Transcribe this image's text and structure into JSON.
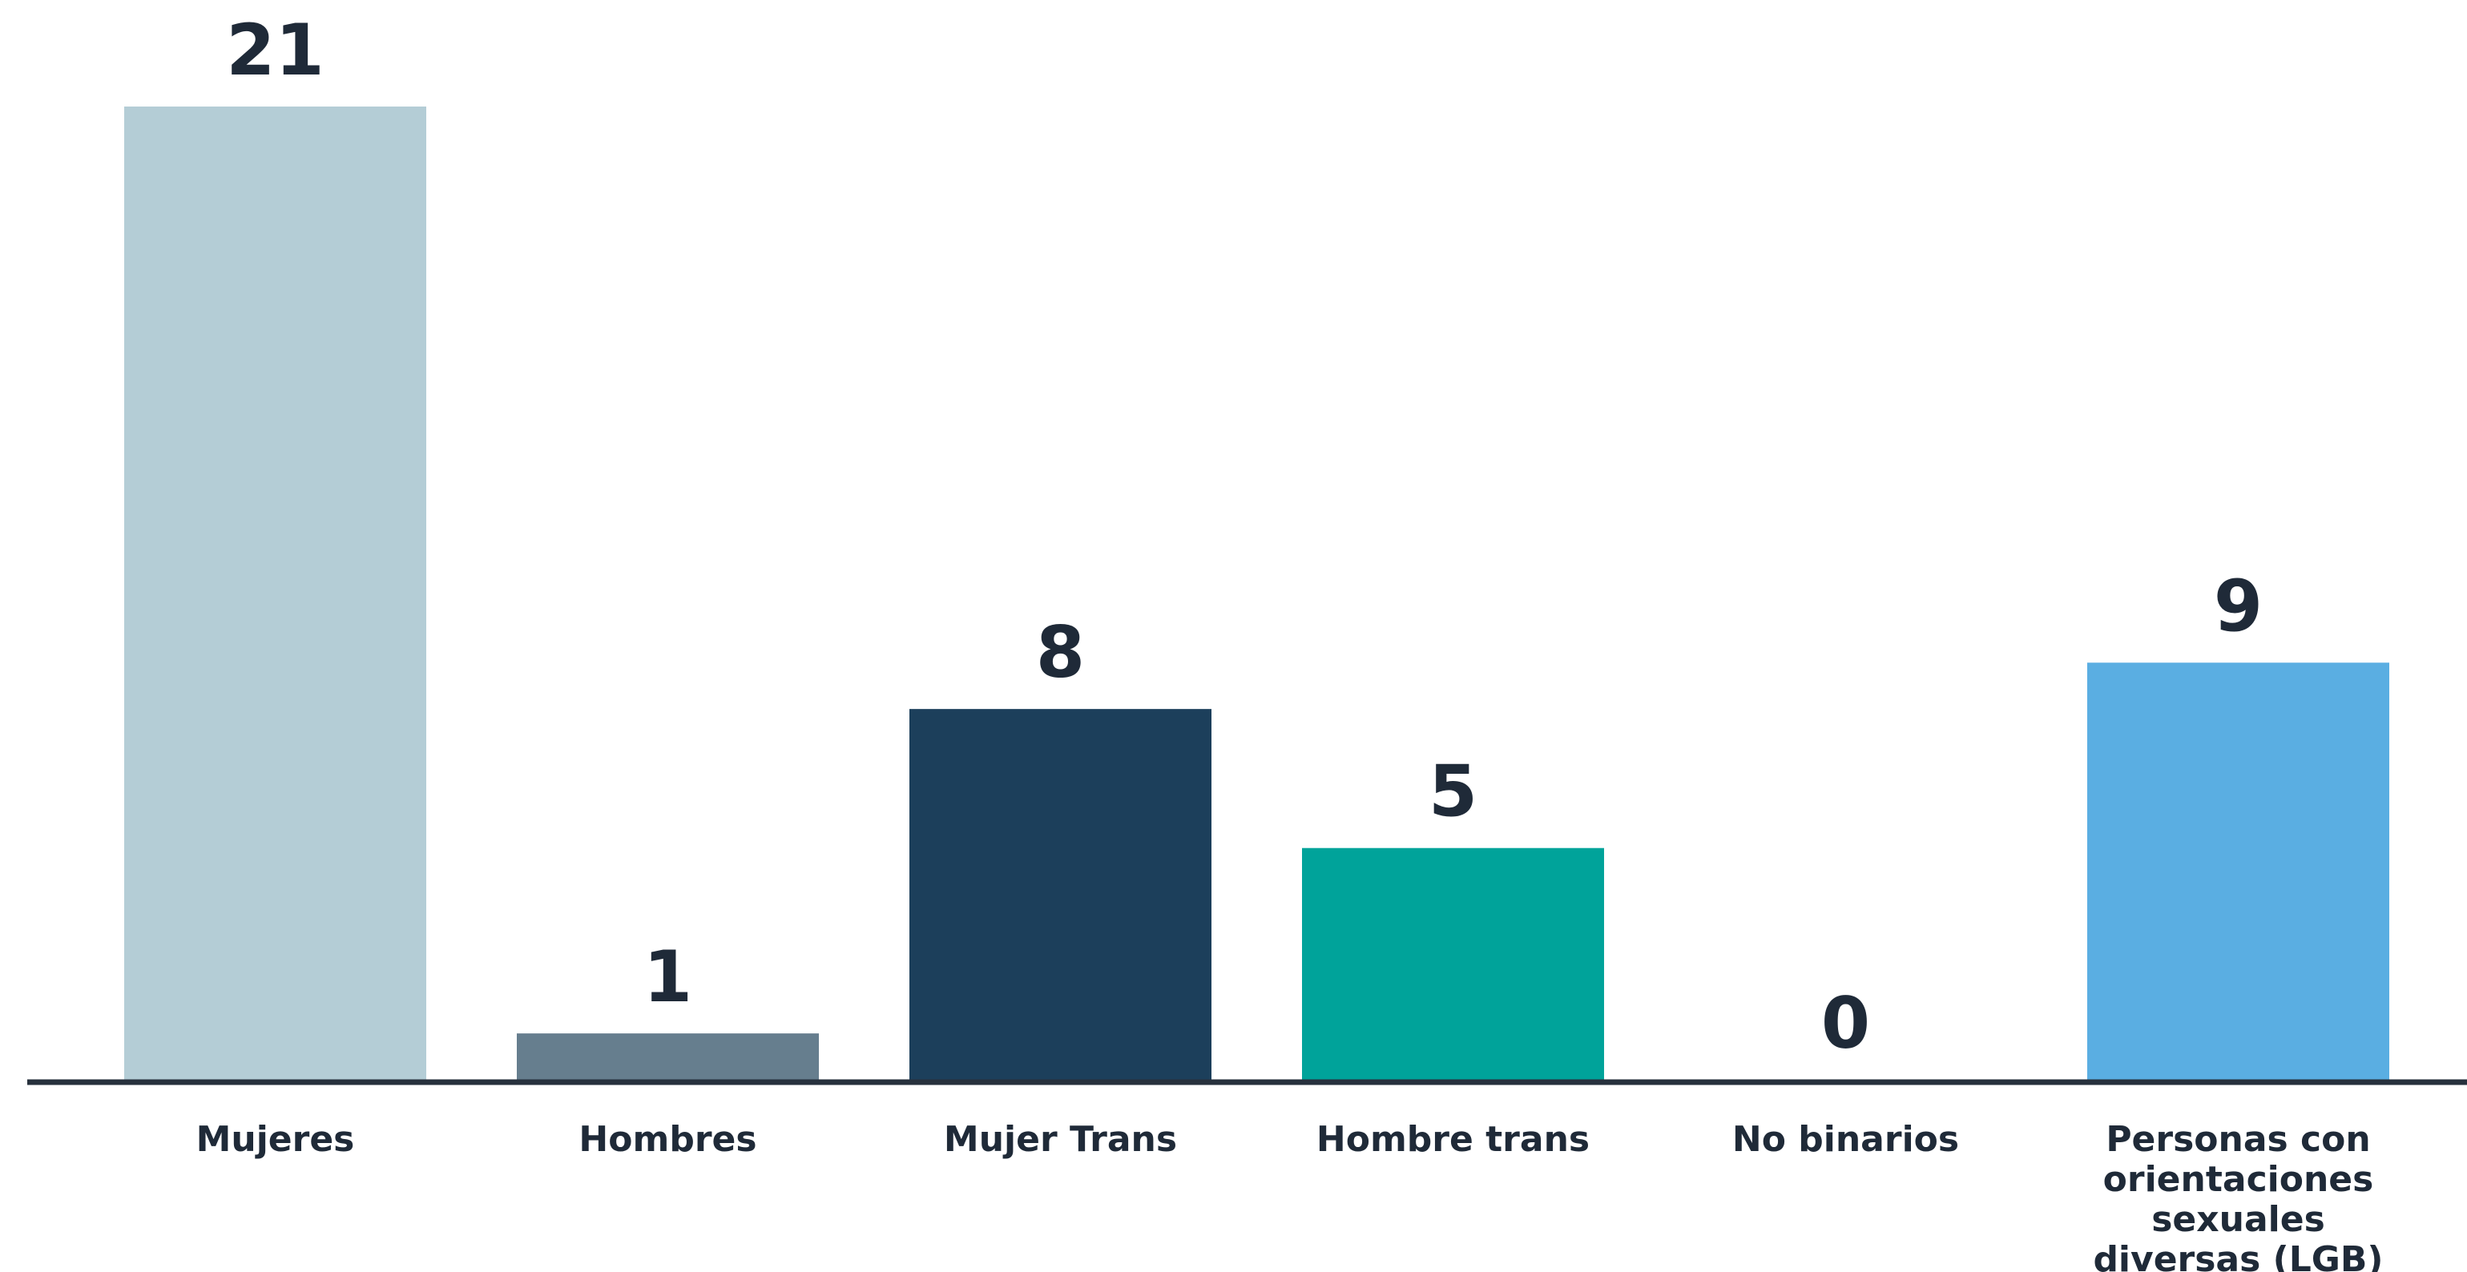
{
  "chart_data": {
    "type": "bar",
    "title": "",
    "xlabel": "",
    "ylabel": "",
    "ylim": [
      0,
      21
    ],
    "grid": false,
    "legend": "none",
    "categories": [
      "Mujeres",
      "Hombres",
      "Mujer Trans",
      "Hombre trans",
      "No binarios",
      "Personas con orientaciones sexuales diversas (LGB)"
    ],
    "category_lines": [
      [
        "Mujeres"
      ],
      [
        "Hombres"
      ],
      [
        "Mujer Trans"
      ],
      [
        "Hombre trans"
      ],
      [
        "No binarios"
      ],
      [
        "Personas con",
        "orientaciones",
        "sexuales",
        "diversas (LGB)"
      ]
    ],
    "values": [
      21,
      1,
      8,
      5,
      0,
      9
    ],
    "data_labels": [
      "21",
      "1",
      "8",
      "5",
      "0",
      "9"
    ],
    "colors": [
      "#b4cdd6",
      "#667e8e",
      "#1c3f5b",
      "#00a39a",
      "#ffffff",
      "#5aaee2"
    ],
    "axis_color": "#27313d",
    "text_color": "#1f2a38"
  }
}
